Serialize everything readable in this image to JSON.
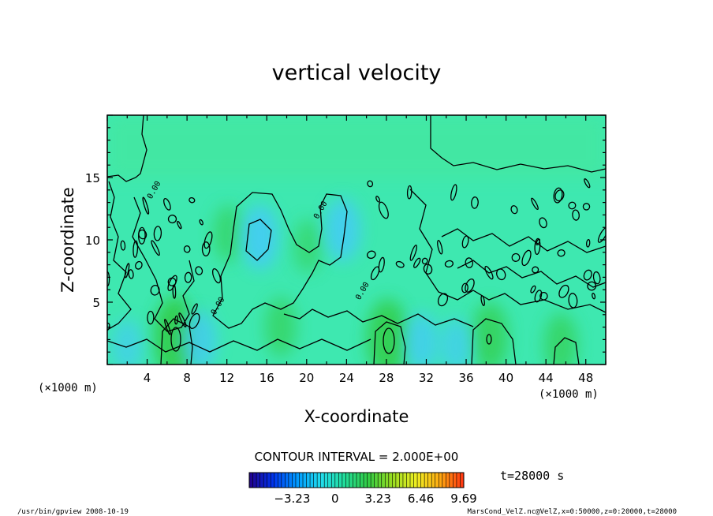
{
  "chart_data": {
    "type": "heatmap",
    "title": "vertical velocity",
    "xlabel": "X-coordinate",
    "ylabel": "Z-coordinate",
    "x_unit_left": "(×1000 m)",
    "x_unit_right": "(×1000 m)",
    "xlim": [
      0,
      50
    ],
    "ylim": [
      0,
      20
    ],
    "xticks": [
      "4",
      "8",
      "12",
      "16",
      "20",
      "24",
      "28",
      "32",
      "36",
      "40",
      "44",
      "48"
    ],
    "xtick_values": [
      4,
      8,
      12,
      16,
      20,
      24,
      28,
      32,
      36,
      40,
      44,
      48
    ],
    "yticks": [
      "5",
      "10",
      "15"
    ],
    "ytick_values": [
      5,
      10,
      15
    ],
    "contour_interval": "CONTOUR INTERVAL = 2.000E+00",
    "contour_labels": [
      {
        "text": "0.00",
        "x": 11.3,
        "y": 4.6
      },
      {
        "text": "0.00",
        "x": 21.6,
        "y": 12.3
      },
      {
        "text": "0.00",
        "x": 25.8,
        "y": 5.8
      },
      {
        "text": "0.00",
        "x": 4.9,
        "y": 13.9
      }
    ],
    "time_label": "t=28000 s",
    "colorbar": {
      "ticks": [
        "−3.23",
        "0",
        "3.23",
        "6.46",
        "9.69"
      ],
      "tick_values": [
        -3.23,
        0,
        3.23,
        6.46,
        9.69
      ],
      "range": [
        -6.46,
        9.69
      ],
      "colors": [
        "#22008a",
        "#0033ee",
        "#0099ff",
        "#22ddee",
        "#22dd99",
        "#33cc44",
        "#99dd22",
        "#eeee22",
        "#ffaa11",
        "#ff3311"
      ]
    },
    "fields": {
      "background": "#3ee8b0",
      "upper_layer": "#47e79a",
      "positive": "#33cc44",
      "negative": "#44c8ff"
    },
    "updrafts": [
      {
        "x": 6.8,
        "z": 2.2,
        "w": 6.5
      },
      {
        "x": 28.1,
        "z": 2.1,
        "w": 6.0
      },
      {
        "x": 38.4,
        "z": 2.2,
        "w": 4.5
      },
      {
        "x": 17.4,
        "z": 3.0,
        "w": 3.0
      },
      {
        "x": 45.5,
        "z": 1.6,
        "w": 3.5
      },
      {
        "x": 12.1,
        "z": 10.5,
        "w": 2.5
      },
      {
        "x": 20.1,
        "z": 9.5,
        "w": 2.0
      }
    ],
    "downdrafts": [
      {
        "x": 15.3,
        "z": 10.2,
        "w": -3.2
      },
      {
        "x": 23.6,
        "z": 10.8,
        "w": -3.0
      },
      {
        "x": 9.2,
        "z": 1.9,
        "w": -2.8
      },
      {
        "x": 31.5,
        "z": 1.8,
        "w": -2.6
      },
      {
        "x": 35.0,
        "z": 1.5,
        "w": -2.2
      },
      {
        "x": 2.0,
        "z": 1.5,
        "w": -2.0
      }
    ]
  },
  "footer": {
    "left": "/usr/bin/gpview   2008-10-19",
    "right": "MarsCond_VelZ.nc@VelZ,x=0:50000,z=0:20000,t=28000"
  }
}
